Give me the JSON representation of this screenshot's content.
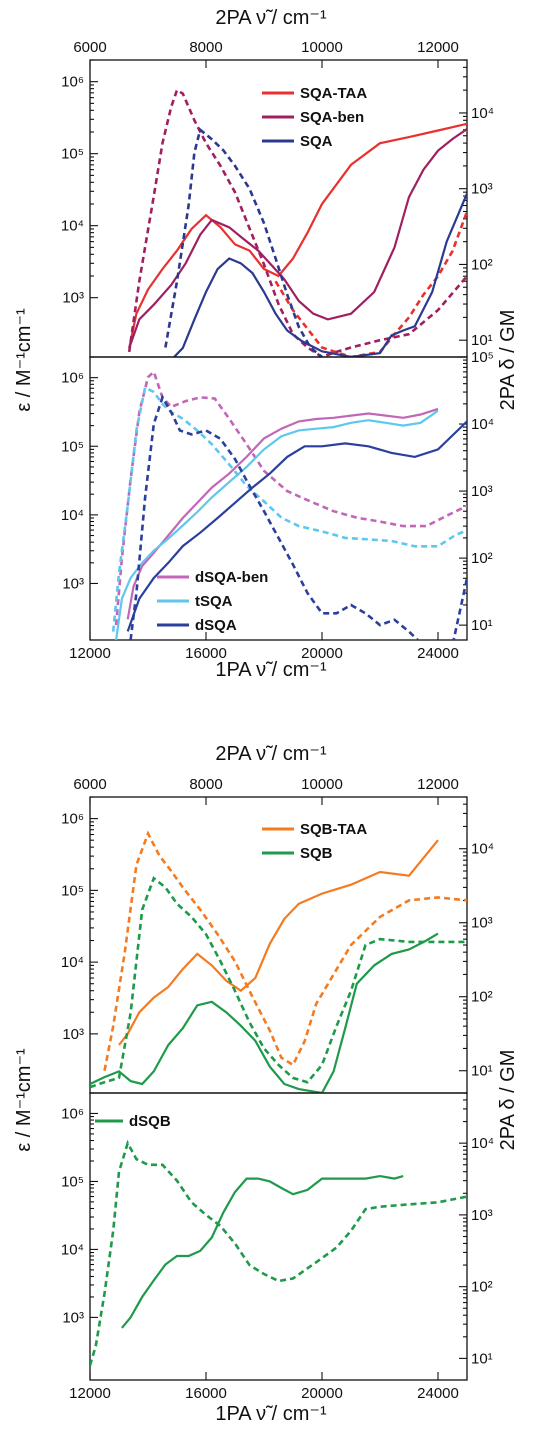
{
  "axis_text": {
    "top_2pa": "2PA ν̃ / cm⁻¹",
    "bottom_1pa": "1PA ν̃ / cm⁻¹",
    "left_eps": "ε / M⁻¹cm⁻¹",
    "right_delta": "2PA δ / GM"
  },
  "chart_data": [
    {
      "type": "line",
      "panel": "SQA",
      "scale": "log",
      "top_axis_ticks": [
        "6000",
        "8000",
        "10000",
        "12000"
      ],
      "ylim_left": [
        150,
        2000000
      ],
      "ylim_right": [
        6,
        50000
      ],
      "left_ticks": [
        "10³",
        "10⁴",
        "10⁵",
        "10⁶"
      ],
      "right_ticks": [
        "10¹",
        "10²",
        "10³",
        "10⁴"
      ],
      "legend_position": "top-center",
      "series": [
        {
          "name": "SQA-TAA",
          "color": "#e8312f",
          "kind": "1PA",
          "x": [
            13350,
            13600,
            14000,
            14500,
            15000,
            15500,
            16000,
            16500,
            17000,
            17500,
            18000,
            18500,
            19000,
            19500,
            20000,
            21000,
            22000,
            23000,
            24000,
            25000
          ],
          "y": [
            200,
            600,
            1300,
            2500,
            4500,
            9000,
            14000,
            9500,
            5500,
            4500,
            2500,
            2000,
            3500,
            8000,
            20000,
            70000,
            140000,
            170000,
            210000,
            260000
          ]
        },
        {
          "name": "SQA-TAA",
          "color": "#e8312f",
          "kind": "2PA",
          "x": [
            18400,
            19000,
            20000,
            21000,
            22000,
            22500,
            23000,
            23500,
            24000,
            24500,
            25000
          ],
          "y": [
            60,
            25,
            8,
            6,
            7,
            12,
            20,
            40,
            70,
            150,
            500
          ]
        },
        {
          "name": "SQA-ben",
          "color": "#a0205f",
          "kind": "1PA",
          "x": [
            13350,
            13700,
            14200,
            14800,
            15300,
            15800,
            16200,
            16800,
            17300,
            17800,
            18200,
            18700,
            19200,
            19700,
            20200,
            21000,
            21800,
            22500,
            23000,
            23500,
            24000,
            24500,
            25000
          ],
          "y": [
            200,
            500,
            800,
            1500,
            3000,
            7500,
            12000,
            9500,
            6500,
            4500,
            3000,
            1800,
            900,
            600,
            500,
            600,
            1200,
            5000,
            25000,
            60000,
            110000,
            160000,
            220000
          ]
        },
        {
          "name": "SQA-ben",
          "color": "#a0205f",
          "kind": "2PA",
          "x": [
            13350,
            13700,
            14200,
            14500,
            14800,
            15000,
            15200,
            15600,
            16000,
            16500,
            17000,
            17500,
            18000,
            18500,
            19000,
            19500,
            20000,
            20500,
            21000,
            22000,
            23000,
            24000,
            25000
          ],
          "y": [
            7,
            60,
            800,
            4000,
            12000,
            20000,
            18000,
            8000,
            4000,
            2000,
            900,
            300,
            100,
            30,
            12,
            8,
            6,
            7,
            8,
            10,
            12,
            25,
            70
          ]
        },
        {
          "name": "SQA",
          "color": "#2b3990",
          "kind": "1PA",
          "x": [
            14900,
            15200,
            15600,
            16000,
            16400,
            16800,
            17200,
            17600,
            18000,
            18400,
            18800,
            19300,
            20000,
            21000,
            22000,
            22400,
            22800,
            23200,
            23800,
            24300,
            25000
          ],
          "y": [
            150,
            200,
            500,
            1200,
            2500,
            3500,
            3000,
            2200,
            1200,
            600,
            350,
            250,
            180,
            150,
            170,
            300,
            350,
            400,
            1200,
            6000,
            28000
          ]
        },
        {
          "name": "SQA",
          "color": "#2b3990",
          "kind": "2PA",
          "x": [
            14600,
            15000,
            15400,
            15600,
            15800,
            16200,
            16600,
            17000,
            17500,
            18000,
            18400,
            18800,
            19200,
            19600,
            20000
          ],
          "y": [
            8,
            60,
            600,
            3000,
            6000,
            4500,
            3200,
            2000,
            1000,
            350,
            120,
            40,
            15,
            8,
            6
          ]
        }
      ]
    },
    {
      "type": "line",
      "panel": "dSQA",
      "scale": "log",
      "xlabel": "1PA ν̃ / cm⁻¹",
      "x_ticks": [
        "12000",
        "16000",
        "20000",
        "24000"
      ],
      "xlim": [
        12000,
        25000
      ],
      "ylim_left": [
        150,
        2000000
      ],
      "ylim_right": [
        6,
        100000
      ],
      "left_ticks": [
        "10³",
        "10⁴",
        "10⁵",
        "10⁶"
      ],
      "right_ticks": [
        "10¹",
        "10²",
        "10³",
        "10⁴",
        "10⁵"
      ],
      "legend_position": "bottom-left",
      "series": [
        {
          "name": "dSQA-ben",
          "color": "#c266b8",
          "kind": "1PA",
          "x": [
            13300,
            13500,
            13800,
            14200,
            14700,
            15200,
            15700,
            16200,
            16800,
            17400,
            18000,
            18600,
            19200,
            19800,
            20400,
            21000,
            21600,
            22200,
            22800,
            23400,
            24000
          ],
          "y": [
            300,
            900,
            1800,
            2800,
            5000,
            9000,
            15000,
            25000,
            40000,
            70000,
            130000,
            180000,
            230000,
            250000,
            260000,
            280000,
            300000,
            280000,
            260000,
            290000,
            350000
          ]
        },
        {
          "name": "dSQA-ben",
          "color": "#c266b8",
          "kind": "2PA",
          "x": [
            12900,
            13100,
            13400,
            13700,
            14000,
            14200,
            14500,
            14800,
            15300,
            15800,
            16300,
            16800,
            17400,
            18000,
            18800,
            19600,
            20400,
            21200,
            22000,
            22800,
            23600,
            24400,
            25000
          ],
          "y": [
            10,
            100,
            1500,
            15000,
            50000,
            60000,
            25000,
            18000,
            22000,
            25000,
            24000,
            12000,
            5000,
            2000,
            1000,
            700,
            500,
            400,
            350,
            300,
            300,
            450,
            600
          ]
        },
        {
          "name": "tSQA",
          "color": "#5ec7ee",
          "kind": "1PA",
          "x": [
            12900,
            13100,
            13400,
            13800,
            14200,
            14700,
            15200,
            15700,
            16200,
            16800,
            17400,
            18000,
            18600,
            19200,
            19800,
            20400,
            21000,
            21600,
            22200,
            22800,
            23400,
            24000
          ],
          "y": [
            150,
            600,
            1200,
            2000,
            3000,
            4500,
            7000,
            11000,
            18000,
            30000,
            50000,
            90000,
            140000,
            170000,
            180000,
            190000,
            220000,
            240000,
            220000,
            200000,
            220000,
            330000
          ]
        },
        {
          "name": "tSQA",
          "color": "#5ec7ee",
          "kind": "2PA",
          "x": [
            12800,
            13000,
            13300,
            13600,
            13900,
            14200,
            14500,
            14800,
            15200,
            15700,
            16200,
            16800,
            17400,
            18000,
            18600,
            19200,
            20000,
            20800,
            21600,
            22400,
            23200,
            24000,
            24600,
            25000
          ],
          "y": [
            8,
            60,
            600,
            8000,
            35000,
            30000,
            20000,
            15000,
            12000,
            8000,
            5000,
            2500,
            1200,
            700,
            400,
            300,
            250,
            200,
            190,
            180,
            150,
            150,
            220,
            260
          ]
        },
        {
          "name": "dSQA",
          "color": "#2b3f9e",
          "kind": "1PA",
          "x": [
            13300,
            13700,
            14200,
            14700,
            15200,
            15800,
            16400,
            17000,
            17600,
            18200,
            18800,
            19400,
            20000,
            20800,
            21600,
            22400,
            23200,
            24000,
            25000
          ],
          "y": [
            200,
            600,
            1200,
            2000,
            3500,
            5500,
            9000,
            15000,
            25000,
            40000,
            70000,
            100000,
            100000,
            110000,
            100000,
            80000,
            70000,
            90000,
            230000
          ]
        },
        {
          "name": "dSQA",
          "color": "#2b3f9e",
          "kind": "2PA",
          "x": [
            13400,
            13600,
            13900,
            14200,
            14500,
            14800,
            15100,
            15500,
            16000,
            16500,
            17000,
            17500,
            18000,
            18500,
            19000,
            19500,
            20000,
            20500,
            21000,
            21500,
            22000,
            22500,
            23000,
            23500,
            24000,
            24500,
            25000
          ],
          "y": [
            6,
            30,
            800,
            10000,
            25000,
            15000,
            8000,
            7000,
            8000,
            6000,
            3000,
            1200,
            500,
            200,
            80,
            30,
            15,
            15,
            20,
            15,
            10,
            12,
            8,
            5,
            5,
            5,
            50
          ]
        }
      ]
    },
    {
      "type": "line",
      "panel": "SQB",
      "scale": "log",
      "top_axis_ticks": [
        "6000",
        "8000",
        "10000",
        "12000"
      ],
      "ylim_left": [
        150,
        2000000
      ],
      "ylim_right": [
        5,
        50000
      ],
      "left_ticks": [
        "10³",
        "10⁴",
        "10⁵",
        "10⁶"
      ],
      "right_ticks": [
        "10¹",
        "10²",
        "10³",
        "10⁴"
      ],
      "legend_position": "top-right",
      "series": [
        {
          "name": "SQB-TAA",
          "color": "#f47b20",
          "kind": "1PA",
          "x": [
            13000,
            13300,
            13700,
            14200,
            14700,
            15200,
            15700,
            16200,
            16700,
            17200,
            17700,
            18200,
            18700,
            19200,
            20000,
            21000,
            22000,
            23000,
            24000
          ],
          "y": [
            700,
            1000,
            2000,
            3200,
            4500,
            8000,
            13000,
            9000,
            5500,
            4000,
            6000,
            18000,
            40000,
            65000,
            90000,
            120000,
            180000,
            160000,
            500000
          ]
        },
        {
          "name": "SQB-TAA",
          "color": "#f47b20",
          "kind": "2PA",
          "x": [
            12500,
            12800,
            13200,
            13600,
            14000,
            14400,
            14800,
            15200,
            15800,
            16400,
            17000,
            17600,
            18200,
            18600,
            19000,
            19400,
            19800,
            20400,
            21000,
            22000,
            23000,
            24000,
            25000
          ],
          "y": [
            10,
            40,
            400,
            6000,
            16000,
            8000,
            5000,
            3000,
            1500,
            700,
            300,
            100,
            35,
            15,
            12,
            25,
            80,
            200,
            500,
            1200,
            2000,
            2200,
            2000
          ]
        },
        {
          "name": "SQB",
          "color": "#1e9a4a",
          "kind": "1PA",
          "x": [
            12000,
            12500,
            13000,
            13400,
            13800,
            14200,
            14700,
            15200,
            15700,
            16200,
            16700,
            17200,
            17700,
            18200,
            18700,
            19200,
            20000,
            20400,
            20800,
            21200,
            21800,
            22400,
            23000,
            23600,
            24000
          ],
          "y": [
            200,
            250,
            300,
            220,
            200,
            300,
            700,
            1200,
            2500,
            2800,
            2000,
            1300,
            800,
            350,
            200,
            170,
            150,
            300,
            1200,
            5000,
            9000,
            13000,
            15000,
            20000,
            25000
          ]
        },
        {
          "name": "SQB",
          "color": "#1e9a4a",
          "kind": "2PA",
          "x": [
            12000,
            12500,
            13000,
            13400,
            13800,
            14200,
            14600,
            15000,
            15500,
            16000,
            16500,
            17000,
            17500,
            18000,
            18500,
            19000,
            19500,
            20000,
            20500,
            21000,
            21500,
            22000,
            23000,
            24000,
            25000
          ],
          "y": [
            6,
            7,
            8,
            60,
            1500,
            4000,
            3000,
            1800,
            1200,
            700,
            300,
            120,
            45,
            20,
            12,
            8,
            7,
            12,
            40,
            120,
            500,
            600,
            550,
            550,
            550
          ]
        }
      ]
    },
    {
      "type": "line",
      "panel": "dSQB",
      "scale": "log",
      "xlabel": "1PA ν̃ / cm⁻¹",
      "x_ticks": [
        "12000",
        "16000",
        "20000",
        "24000"
      ],
      "xlim": [
        12000,
        25000
      ],
      "ylim_left": [
        120,
        2000000
      ],
      "ylim_right": [
        5,
        50000
      ],
      "left_ticks": [
        "10³",
        "10⁴",
        "10⁵",
        "10⁶"
      ],
      "right_ticks": [
        "10¹",
        "10²",
        "10³",
        "10⁴"
      ],
      "legend_position": "top-left",
      "series": [
        {
          "name": "dSQB",
          "color": "#1e9a4a",
          "kind": "1PA",
          "x": [
            13100,
            13400,
            13800,
            14200,
            14600,
            15000,
            15400,
            15800,
            16200,
            16600,
            17000,
            17400,
            17800,
            18200,
            18600,
            19000,
            19500,
            20000,
            20500,
            21000,
            21500,
            22000,
            22500,
            22800
          ],
          "y": [
            700,
            1000,
            2000,
            3500,
            6000,
            8000,
            8000,
            9500,
            15000,
            35000,
            70000,
            110000,
            110000,
            100000,
            80000,
            65000,
            75000,
            110000,
            110000,
            110000,
            110000,
            120000,
            110000,
            120000
          ]
        },
        {
          "name": "dSQB",
          "color": "#1e9a4a",
          "kind": "2PA",
          "x": [
            12000,
            12200,
            12500,
            12800,
            13000,
            13300,
            13600,
            14000,
            14500,
            15000,
            15500,
            16000,
            16500,
            17000,
            17500,
            18000,
            18500,
            19000,
            19500,
            20000,
            20500,
            21000,
            21500,
            22000,
            23000,
            24000,
            25000
          ],
          "y": [
            8,
            15,
            80,
            600,
            4000,
            10000,
            6000,
            5000,
            5000,
            3000,
            1500,
            1000,
            700,
            400,
            200,
            150,
            120,
            130,
            180,
            250,
            350,
            600,
            1200,
            1300,
            1400,
            1500,
            1800
          ]
        }
      ]
    }
  ]
}
